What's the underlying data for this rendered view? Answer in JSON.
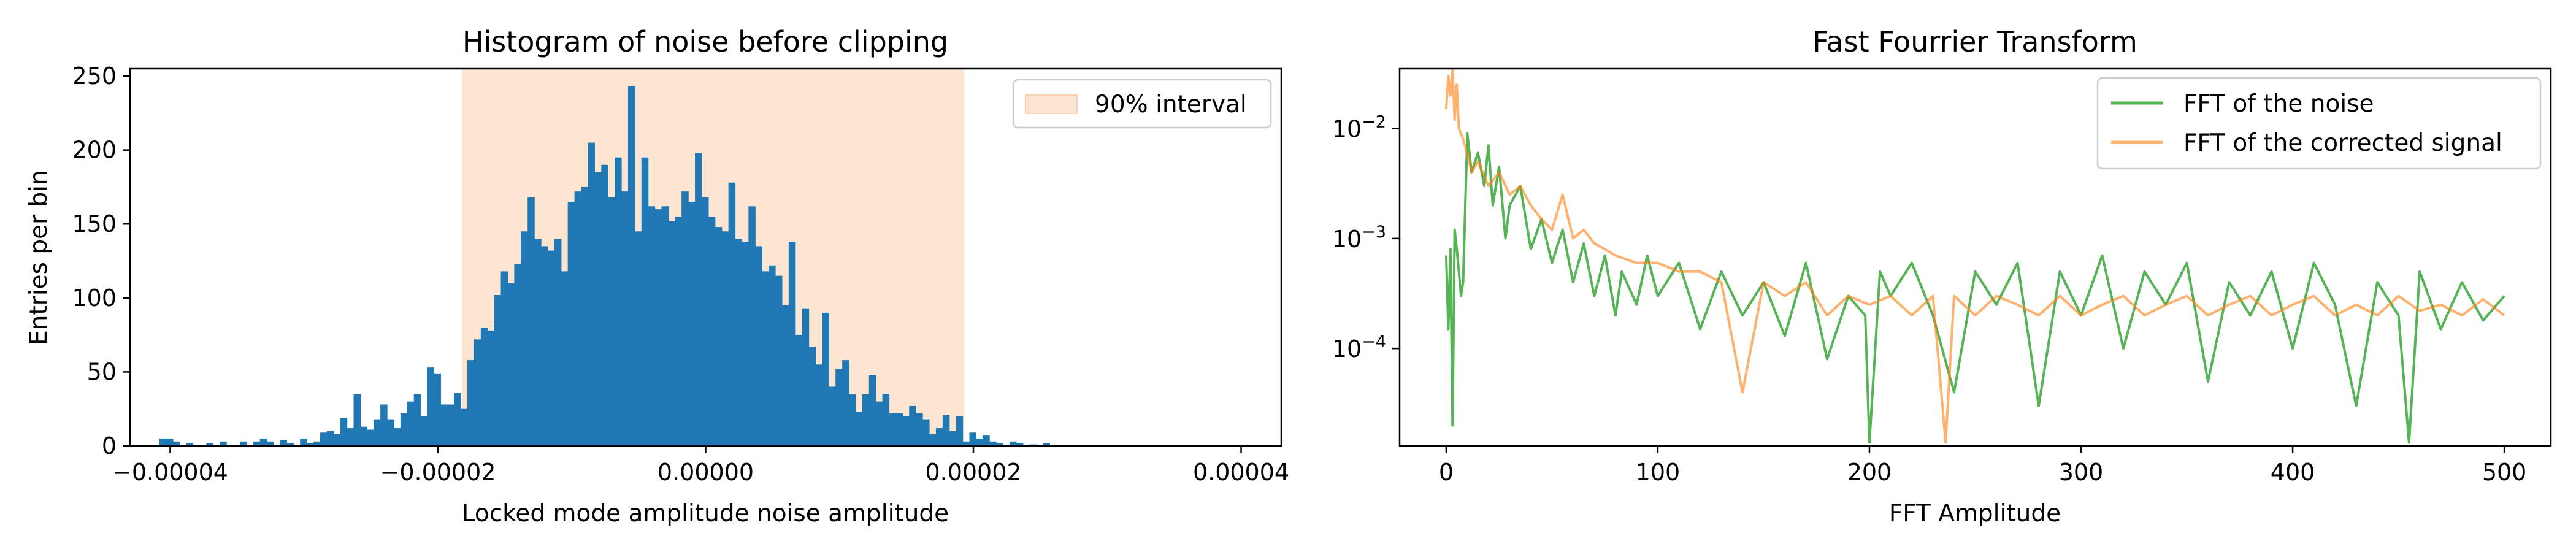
{
  "chart_data": [
    {
      "type": "bar",
      "title": "Histogram of noise before clipping",
      "xlabel": "Locked mode amplitude noise amplitude",
      "ylabel": "Entries per bin",
      "xlim": [
        -4.3e-05,
        4.3e-05
      ],
      "ylim": [
        0,
        255
      ],
      "x_ticks": [
        {
          "value": -4e-05,
          "label": "−0.00004"
        },
        {
          "value": -2e-05,
          "label": "−0.00002"
        },
        {
          "value": 0.0,
          "label": "0.00000"
        },
        {
          "value": 2e-05,
          "label": "0.00002"
        },
        {
          "value": 4e-05,
          "label": "0.00004"
        }
      ],
      "y_ticks": [
        {
          "value": 0,
          "label": "0"
        },
        {
          "value": 50,
          "label": "50"
        },
        {
          "value": 100,
          "label": "100"
        },
        {
          "value": 150,
          "label": "150"
        },
        {
          "value": 200,
          "label": "200"
        },
        {
          "value": 250,
          "label": "250"
        }
      ],
      "bin_start": -4.08e-05,
      "bin_width": 5e-07,
      "counts": [
        5,
        5,
        3,
        0,
        2,
        0,
        0,
        2,
        0,
        3,
        0,
        0,
        3,
        0,
        3,
        5,
        3,
        0,
        4,
        2,
        0,
        5,
        2,
        3,
        9,
        10,
        8,
        19,
        12,
        35,
        13,
        11,
        18,
        28,
        18,
        12,
        22,
        30,
        35,
        20,
        53,
        49,
        28,
        28,
        36,
        25,
        58,
        72,
        80,
        78,
        102,
        118,
        110,
        123,
        145,
        168,
        140,
        135,
        132,
        140,
        118,
        165,
        172,
        175,
        205,
        185,
        190,
        168,
        195,
        172,
        243,
        145,
        195,
        162,
        160,
        162,
        152,
        155,
        172,
        165,
        198,
        168,
        155,
        148,
        145,
        178,
        140,
        138,
        162,
        135,
        118,
        122,
        115,
        95,
        138,
        75,
        93,
        67,
        55,
        90,
        40,
        52,
        58,
        35,
        23,
        35,
        48,
        30,
        35,
        22,
        22,
        20,
        27,
        22,
        18,
        8,
        12,
        21,
        10,
        20,
        3,
        9,
        5,
        7,
        3,
        2,
        0,
        3,
        2,
        0,
        1,
        0,
        2
      ],
      "interval": {
        "from": -1.82e-05,
        "to": 1.93e-05,
        "color": "#fde6d1"
      },
      "bar_color": "#1f77b4",
      "legend": {
        "placement": "top-right",
        "entries": [
          {
            "name": "90% interval",
            "color": "#fde6d1"
          }
        ]
      }
    },
    {
      "type": "line",
      "title": "Fast Fourrier Transform",
      "xlabel": "FFT Amplitude",
      "ylabel": "",
      "yscale": "log",
      "xlim": [
        -22,
        522
      ],
      "ylim": [
        1.3e-05,
        0.035
      ],
      "x_ticks": [
        {
          "value": 0,
          "label": "0"
        },
        {
          "value": 100,
          "label": "100"
        },
        {
          "value": 200,
          "label": "200"
        },
        {
          "value": 300,
          "label": "300"
        },
        {
          "value": 400,
          "label": "400"
        },
        {
          "value": 500,
          "label": "500"
        }
      ],
      "y_ticks": [
        {
          "value": 0.0001,
          "base": "10",
          "exp": "−4"
        },
        {
          "value": 0.001,
          "base": "10",
          "exp": "−3"
        },
        {
          "value": 0.01,
          "base": "10",
          "exp": "−2"
        }
      ],
      "series": [
        {
          "name": "FFT of the noise",
          "color": "#2ca02c",
          "x": [
            0,
            1,
            2,
            3,
            4,
            5,
            6,
            7,
            8,
            10,
            12,
            15,
            18,
            20,
            22,
            25,
            28,
            30,
            35,
            40,
            45,
            50,
            55,
            60,
            65,
            70,
            75,
            80,
            83,
            90,
            95,
            100,
            110,
            120,
            130,
            140,
            150,
            160,
            170,
            180,
            190,
            198,
            200,
            205,
            210,
            220,
            230,
            240,
            250,
            260,
            270,
            280,
            290,
            300,
            310,
            320,
            330,
            340,
            350,
            360,
            370,
            380,
            390,
            400,
            410,
            420,
            430,
            440,
            450,
            455,
            460,
            470,
            480,
            490,
            500
          ],
          "y": [
            0.0007,
            0.00015,
            0.0008,
            2e-05,
            0.0012,
            0.0008,
            0.0005,
            0.0003,
            0.0004,
            0.009,
            0.004,
            0.006,
            0.003,
            0.007,
            0.002,
            0.0045,
            0.001,
            0.002,
            0.003,
            0.0008,
            0.0015,
            0.0006,
            0.0012,
            0.0004,
            0.0009,
            0.0003,
            0.0007,
            0.0002,
            0.0005,
            0.00025,
            0.0007,
            0.0003,
            0.0006,
            0.00015,
            0.0005,
            0.0002,
            0.0004,
            0.00013,
            0.0006,
            8e-05,
            0.0003,
            0.0002,
            1.4e-05,
            0.0005,
            0.0003,
            0.0006,
            0.0002,
            4e-05,
            0.0005,
            0.00025,
            0.0006,
            3e-05,
            0.0005,
            0.0002,
            0.0007,
            0.0001,
            0.0005,
            0.00025,
            0.0006,
            5e-05,
            0.0004,
            0.0002,
            0.0005,
            0.0001,
            0.0006,
            0.00025,
            3e-05,
            0.0004,
            0.0002,
            1.4e-05,
            0.0005,
            0.00015,
            0.0004,
            0.00018,
            0.0003
          ]
        },
        {
          "name": "FFT of the corrected signal",
          "color": "#ff7f0e",
          "x": [
            0,
            1,
            2,
            3,
            4,
            5,
            6,
            8,
            10,
            12,
            15,
            20,
            25,
            30,
            35,
            40,
            45,
            50,
            55,
            60,
            65,
            70,
            75,
            80,
            90,
            100,
            110,
            120,
            130,
            140,
            150,
            160,
            170,
            180,
            190,
            200,
            210,
            220,
            230,
            236,
            240,
            250,
            260,
            270,
            280,
            290,
            300,
            310,
            320,
            330,
            340,
            350,
            360,
            370,
            380,
            390,
            400,
            410,
            420,
            430,
            440,
            450,
            460,
            470,
            480,
            490,
            500
          ],
          "y": [
            0.015,
            0.03,
            0.02,
            0.035,
            0.012,
            0.025,
            0.01,
            0.008,
            0.006,
            0.004,
            0.005,
            0.003,
            0.004,
            0.0025,
            0.003,
            0.002,
            0.0015,
            0.0012,
            0.0025,
            0.001,
            0.0012,
            0.0009,
            0.0008,
            0.0007,
            0.0006,
            0.0006,
            0.0005,
            0.0005,
            0.0004,
            4e-05,
            0.0004,
            0.0003,
            0.0004,
            0.0002,
            0.0003,
            0.00025,
            0.0003,
            0.0002,
            0.0003,
            1.4e-05,
            0.0003,
            0.0002,
            0.0003,
            0.00025,
            0.0002,
            0.0003,
            0.0002,
            0.00025,
            0.0003,
            0.0002,
            0.00025,
            0.0003,
            0.0002,
            0.00025,
            0.0003,
            0.0002,
            0.00025,
            0.0003,
            0.0002,
            0.00025,
            0.0002,
            0.0003,
            0.00022,
            0.00025,
            0.0002,
            0.00028,
            0.0002
          ]
        }
      ],
      "legend": {
        "placement": "top-right"
      }
    }
  ]
}
